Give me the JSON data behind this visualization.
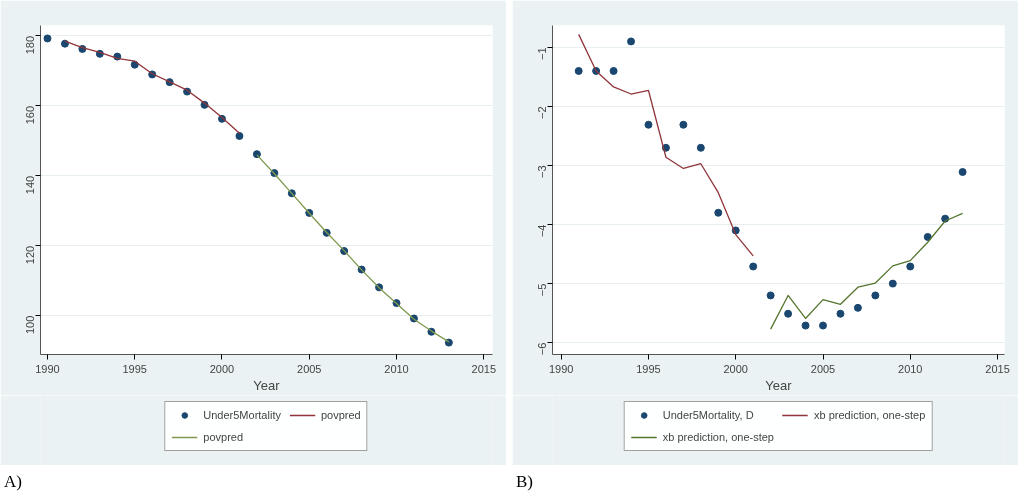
{
  "chart_data": [
    {
      "type": "line",
      "xlabel": "Year",
      "xlim": [
        1989.6,
        2015.5
      ],
      "xticks": [
        1990,
        1995,
        2000,
        2005,
        2010,
        2015
      ],
      "ylim": [
        88.9,
        183
      ],
      "yticks": [
        100,
        120,
        140,
        160,
        180
      ],
      "grid": "y",
      "legend": "bottom",
      "annotations": [
        "A)"
      ],
      "series": [
        {
          "type": "scatter",
          "marker": "circle",
          "name": "Under5Mortality",
          "color": "#1a476f",
          "x": [
            1990,
            1991,
            1992,
            1993,
            1994,
            1995,
            1996,
            1997,
            1998,
            1999,
            2000,
            2001,
            2002,
            2003,
            2004,
            2005,
            2006,
            2007,
            2008,
            2009,
            2010,
            2011,
            2012,
            2013
          ],
          "values": [
            179.3,
            177.8,
            176.3,
            174.9,
            174.1,
            171.8,
            169.0,
            166.8,
            164.1,
            160.3,
            156.3,
            151.4,
            146.2,
            140.8,
            135.0,
            129.4,
            123.7,
            118.5,
            113.2,
            108.1,
            103.6,
            99.2,
            95.4,
            92.3
          ]
        },
        {
          "name": "povpred",
          "color": "#90353b",
          "x": [
            1991,
            1992,
            1993,
            1994,
            1995,
            1996,
            1997,
            1998,
            1999,
            2000,
            2001
          ],
          "values": [
            178.5,
            176.7,
            175.3,
            173.6,
            172.8,
            169.2,
            166.9,
            164.5,
            160.8,
            156.7,
            152.2
          ]
        },
        {
          "name": "povpred",
          "color": "#7f9a4f",
          "x": [
            2002,
            2003,
            2004,
            2005,
            2006,
            2007,
            2008,
            2009,
            2010,
            2011,
            2012,
            2013
          ],
          "values": [
            146.0,
            140.6,
            135.0,
            129.3,
            123.8,
            118.6,
            113.1,
            108.0,
            103.5,
            99.0,
            95.6,
            92.5
          ]
        }
      ]
    },
    {
      "type": "line",
      "xlabel": "Year",
      "xlim": [
        1989.5,
        2015.4
      ],
      "xticks": [
        1990,
        1995,
        2000,
        2005,
        2010,
        2015
      ],
      "ylim": [
        -6.2,
        -0.63
      ],
      "yticks": [
        -6,
        -5,
        -4,
        -3,
        -2,
        -1
      ],
      "grid": "y",
      "legend": "bottom",
      "annotations": [
        "B)"
      ],
      "series": [
        {
          "type": "scatter",
          "marker": "circle",
          "name": "Under5Mortality, D",
          "color": "#1a476f",
          "x": [
            1991,
            1992,
            1993,
            1994,
            1995,
            1996,
            1997,
            1998,
            1999,
            2000,
            2001,
            2002,
            2003,
            2004,
            2005,
            2006,
            2007,
            2008,
            2009,
            2010,
            2011,
            2012,
            2013
          ],
          "values": [
            -1.4,
            -1.4,
            -1.4,
            -0.9,
            -2.31,
            -2.7,
            -2.31,
            -2.7,
            -3.8,
            -4.1,
            -4.71,
            -5.2,
            -5.51,
            -5.71,
            -5.71,
            -5.51,
            -5.41,
            -5.2,
            -5.0,
            -4.71,
            -4.21,
            -3.9,
            -3.11
          ]
        },
        {
          "name": "xb prediction, one-step",
          "color": "#90353b",
          "x": [
            1991,
            1992,
            1993,
            1994,
            1995,
            1996,
            1997,
            1998,
            1999,
            2000,
            2001
          ],
          "values": [
            -0.78,
            -1.4,
            -1.67,
            -1.79,
            -1.73,
            -2.86,
            -3.05,
            -2.97,
            -3.46,
            -4.17,
            -4.53
          ]
        },
        {
          "name": "xb prediction, one-step",
          "color": "#55752f",
          "x": [
            2002,
            2003,
            2004,
            2005,
            2006,
            2007,
            2008,
            2009,
            2010,
            2011,
            2012,
            2013
          ],
          "values": [
            -5.77,
            -5.2,
            -5.59,
            -5.27,
            -5.35,
            -5.06,
            -4.99,
            -4.7,
            -4.61,
            -4.3,
            -3.94,
            -3.81
          ]
        }
      ]
    }
  ]
}
